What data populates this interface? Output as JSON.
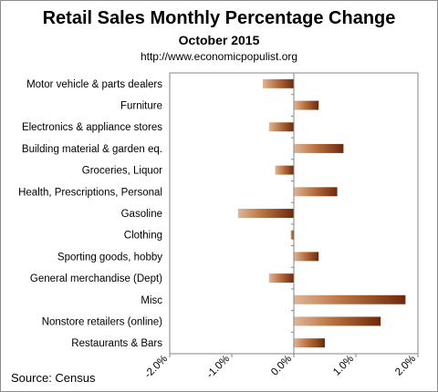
{
  "chart_data": {
    "type": "bar",
    "orientation": "horizontal",
    "title": "Retail Sales Monthly  Percentage Change",
    "subtitle": "October  2015",
    "source_url": "http://www.economicpopulist.org",
    "source": "Source:  Census",
    "categories": [
      "Motor vehicle & parts dealers",
      "Furniture",
      "Electronics & appliance stores",
      "Building material & garden eq.",
      "Groceries, Liquor",
      "Health, Prescriptions, Personal",
      "Gasoline",
      "Clothing",
      "Sporting goods, hobby",
      "General merchandise (Dept)",
      "Misc",
      "Nonstore retailers (online)",
      "Restaurants & Bars"
    ],
    "values": [
      -0.5,
      0.4,
      -0.4,
      0.8,
      -0.3,
      0.7,
      -0.9,
      -0.05,
      0.4,
      -0.4,
      1.8,
      1.4,
      0.5
    ],
    "xlim": [
      -2.0,
      2.0
    ],
    "xticks": [
      "-2.0%",
      "-1.0%",
      "0.0%",
      "1.0%",
      "2.0%"
    ],
    "grid": false,
    "colors": {
      "bar_light": "#deb697",
      "bar_dark": "#6b2a0c",
      "axis": "#868686"
    }
  }
}
